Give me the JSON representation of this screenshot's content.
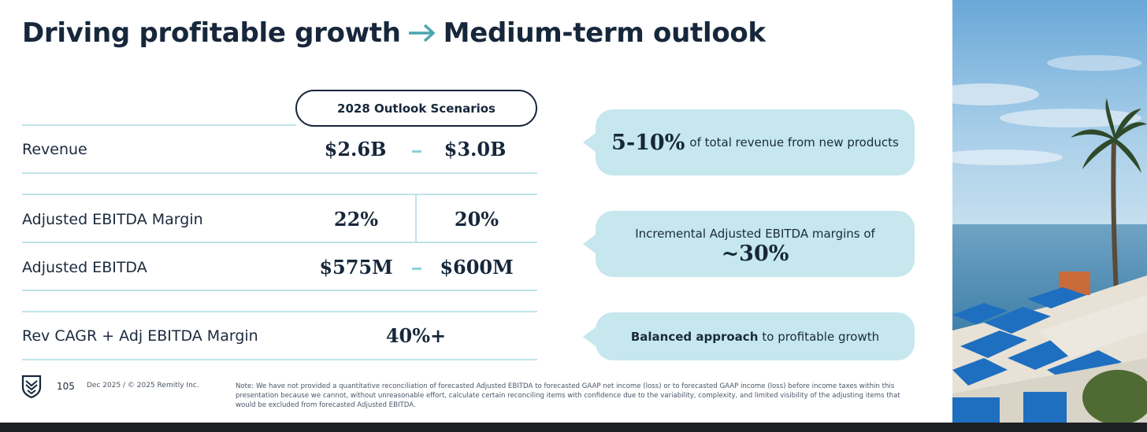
{
  "title": {
    "left": "Driving profitable growth",
    "right": "Medium-term outlook"
  },
  "table": {
    "scenario_header": "2028 Outlook Scenarios",
    "rows": {
      "revenue": {
        "label": "Revenue",
        "low": "$2.6B",
        "high": "$3.0B"
      },
      "margin": {
        "label": "Adjusted EBITDA Margin",
        "low": "22%",
        "high": "20%"
      },
      "ebitda": {
        "label": "Adjusted EBITDA",
        "low": "$575M",
        "high": "$600M"
      },
      "cagr": {
        "label": "Rev CAGR + Adj EBITDA Margin",
        "value": "40%+"
      }
    }
  },
  "callouts": {
    "new_products": {
      "big": "5-10%",
      "text": "of total revenue from new products"
    },
    "incremental": {
      "text": "Incremental Adjusted EBITDA margins of",
      "big": "~30%"
    },
    "balanced": {
      "bold": "Balanced approach",
      "text": "to profitable growth"
    }
  },
  "footer": {
    "page_number": "105",
    "date": "Dec 2025 / © 2025 Remitly Inc.",
    "note": "Note: We have not provided a quantitative reconciliation of forecasted Adjusted EBITDA to forecasted GAAP net income (loss) or to forecasted GAAP income (loss) before income taxes within this presentation because we cannot, without unreasonable effort, calculate certain reconciling items with confidence due to the variability, complexity, and limited visibility of the adjusting items that would be excluded from forecasted Adjusted EBITDA."
  },
  "icons": {
    "arrow": "arrow-right-icon",
    "logo": "remitly-shield-logo-icon"
  },
  "colors": {
    "navy": "#17273b",
    "teal_accent": "#4aa6ae",
    "callout_bg": "#c5e7ed",
    "rule": "#bfe3ea"
  }
}
